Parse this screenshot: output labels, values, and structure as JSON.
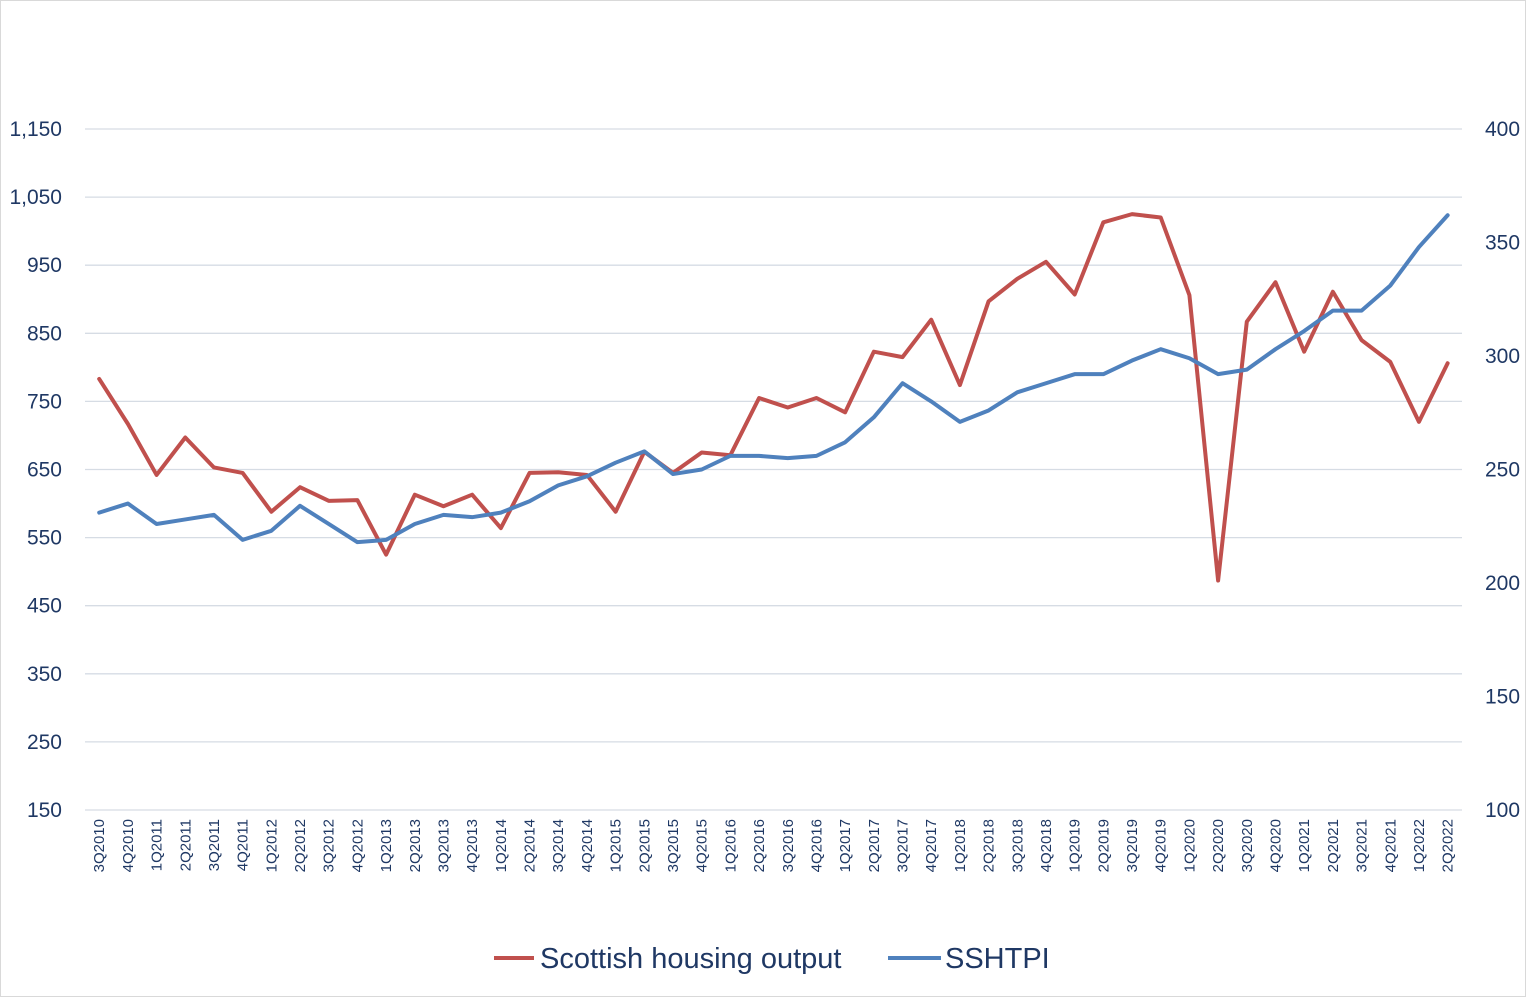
{
  "chart_data": {
    "type": "line",
    "title": "",
    "xlabel": "",
    "ylabel": "",
    "categories": [
      "3Q2010",
      "4Q2010",
      "1Q2011",
      "2Q2011",
      "3Q2011",
      "4Q2011",
      "1Q2012",
      "2Q2012",
      "3Q2012",
      "4Q2012",
      "1Q2013",
      "2Q2013",
      "3Q2013",
      "4Q2013",
      "1Q2014",
      "2Q2014",
      "3Q2014",
      "4Q2014",
      "1Q2015",
      "2Q2015",
      "3Q2015",
      "4Q2015",
      "1Q2016",
      "2Q2016",
      "3Q2016",
      "4Q2016",
      "1Q2017",
      "2Q2017",
      "3Q2017",
      "4Q2017",
      "1Q2018",
      "2Q2018",
      "3Q2018",
      "4Q2018",
      "1Q2019",
      "2Q2019",
      "3Q2019",
      "4Q2019",
      "1Q2020",
      "2Q2020",
      "3Q2020",
      "4Q2020",
      "1Q2021",
      "2Q2021",
      "3Q2021",
      "4Q2021",
      "1Q2022",
      "2Q2022"
    ],
    "x_tick_labels": [
      "3Q2010",
      "4Q2010",
      "1Q2011",
      "2Q2011",
      "3Q2011",
      "4Q2011",
      "1Q2012",
      "2Q2012",
      "3Q2012",
      "4Q2012",
      "1Q2013",
      "2Q2013",
      "3Q2013",
      "4Q2013",
      "1Q2014",
      "2Q2014",
      "3Q2014",
      "4Q2014",
      "1Q2015",
      "2Q2015",
      "3Q2015",
      "4Q2015",
      "1Q2016",
      "2Q2016",
      "3Q2016",
      "4Q2016",
      "1Q2017",
      "2Q2017",
      "3Q2017",
      "4Q2017",
      "1Q2018",
      "2Q2018",
      "3Q2018",
      "4Q2018",
      "1Q2019",
      "2Q2019",
      "3Q2019",
      "4Q2019",
      "1Q2020",
      "2Q2020",
      "3Q2020",
      "4Q2020",
      "1Q2021",
      "2Q2021",
      "3Q2021",
      "4Q2021",
      "1Q2022",
      "2Q2022"
    ],
    "y_left": {
      "ylim": [
        150,
        1150
      ],
      "ticks": [
        150,
        250,
        350,
        450,
        550,
        650,
        750,
        850,
        950,
        1050,
        1150
      ],
      "tick_labels": [
        "150",
        "250",
        "350",
        "450",
        "550",
        "650",
        "750",
        "850",
        "950",
        "1,050",
        "1,150"
      ]
    },
    "y_right": {
      "ylim": [
        100,
        400
      ],
      "ticks": [
        100,
        150,
        200,
        250,
        300,
        350,
        400
      ],
      "tick_labels": [
        "100",
        "150",
        "200",
        "250",
        "300",
        "350",
        "400"
      ]
    },
    "grid": true,
    "legend_position": "bottom",
    "series": [
      {
        "name": "Scottish housing output",
        "axis": "left",
        "color": "#c0504d",
        "values": [
          783,
          717,
          642,
          697,
          653,
          645,
          588,
          624,
          604,
          605,
          525,
          613,
          596,
          613,
          564,
          645,
          646,
          642,
          588,
          676,
          645,
          675,
          671,
          755,
          741,
          755,
          734,
          823,
          815,
          870,
          774,
          897,
          930,
          955,
          907,
          1013,
          1025,
          1020,
          906,
          487,
          867,
          925,
          823,
          911,
          840,
          808,
          720,
          806
        ]
      },
      {
        "name": "SSHTPI",
        "axis": "right",
        "color": "#4f81bd",
        "values": [
          231,
          235,
          226,
          228,
          230,
          219,
          223,
          234,
          226,
          218,
          219,
          226,
          230,
          229,
          231,
          236,
          243,
          247,
          253,
          258,
          248,
          250,
          256,
          256,
          255,
          256,
          262,
          273,
          288,
          280,
          271,
          276,
          284,
          288,
          292,
          292,
          298,
          303,
          299,
          292,
          294,
          303,
          311,
          320,
          320,
          331,
          348,
          362
        ]
      }
    ]
  }
}
